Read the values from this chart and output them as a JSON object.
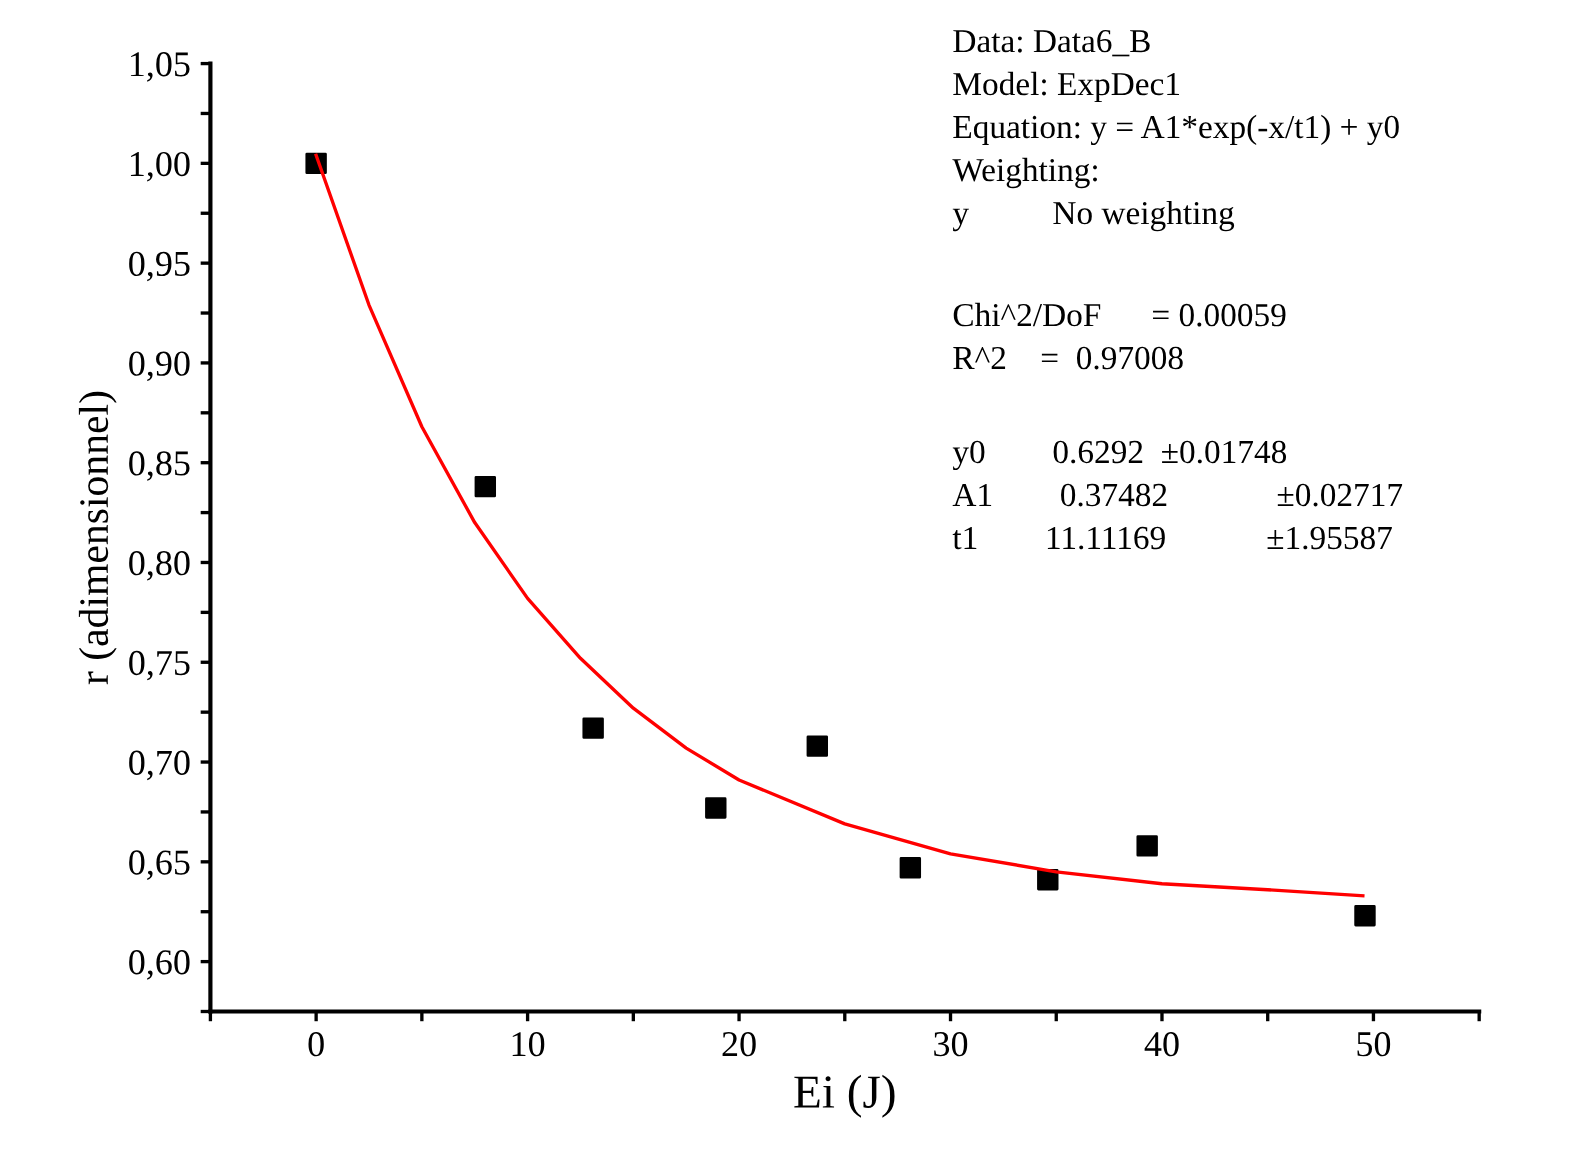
{
  "chart_data": {
    "type": "scatter",
    "xlabel": "Ei (J)",
    "ylabel": "r (adimensionnel)",
    "xlim": [
      -5,
      55
    ],
    "ylim": [
      0.575,
      1.05
    ],
    "xticks": [
      {
        "value": -5,
        "label": null
      },
      0,
      {
        "value": 5,
        "label": null
      },
      10,
      {
        "value": 15,
        "label": null
      },
      20,
      {
        "value": 25,
        "label": null
      },
      30,
      {
        "value": 35,
        "label": null
      },
      40,
      {
        "value": 45,
        "label": null
      },
      50,
      {
        "value": 55,
        "label": null
      }
    ],
    "yticks": [
      {
        "value": 0.575,
        "label": null
      },
      {
        "value": 0.6,
        "label": "0,60"
      },
      {
        "value": 0.625,
        "label": null
      },
      {
        "value": 0.65,
        "label": "0,65"
      },
      {
        "value": 0.675,
        "label": null
      },
      {
        "value": 0.7,
        "label": "0,70"
      },
      {
        "value": 0.725,
        "label": null
      },
      {
        "value": 0.75,
        "label": "0,75"
      },
      {
        "value": 0.775,
        "label": null
      },
      {
        "value": 0.8,
        "label": "0,80"
      },
      {
        "value": 0.825,
        "label": null
      },
      {
        "value": 0.85,
        "label": "0,85"
      },
      {
        "value": 0.875,
        "label": null
      },
      {
        "value": 0.9,
        "label": "0,90"
      },
      {
        "value": 0.925,
        "label": null
      },
      {
        "value": 0.95,
        "label": "0,95"
      },
      {
        "value": 0.975,
        "label": null
      },
      {
        "value": 1.0,
        "label": "1,00"
      },
      {
        "value": 1.025,
        "label": null
      },
      {
        "value": 1.05,
        "label": "1,05"
      }
    ],
    "grid": false,
    "legend": false,
    "series": [
      {
        "color": "#000000",
        "marker": "square",
        "x": [
          0,
          8.0,
          13.1,
          18.9,
          23.7,
          28.1,
          34.6,
          39.3,
          49.6
        ],
        "values": [
          1.0,
          0.838,
          0.717,
          0.677,
          0.708,
          0.647,
          0.641,
          0.658,
          0.623
        ]
      },
      {
        "type": "line",
        "color": "#ff0000",
        "marker": "none",
        "line_style": "solid",
        "x": [
          0,
          2.5,
          5,
          7.5,
          10,
          12.5,
          15,
          17.5,
          20,
          25,
          30,
          35,
          40,
          45,
          49.5
        ],
        "values": [
          1.004,
          0.929,
          0.868,
          0.82,
          0.782,
          0.752,
          0.727,
          0.707,
          0.691,
          0.669,
          0.654,
          0.645,
          0.639,
          0.636,
          0.633
        ]
      }
    ],
    "annotations": [
      "Data: Data6_B\nModel: ExpDec1\nEquation: y = A1*exp(-x/t1) + y0\nWeighting:\ny          No weighting",
      "Chi^2/DoF      = 0.00059\nR^2    =  0.97008",
      "y0        0.6292  ±0.01748\nA1        0.37482             ±0.02717\nt1        11.11169            ±1.95587"
    ]
  }
}
